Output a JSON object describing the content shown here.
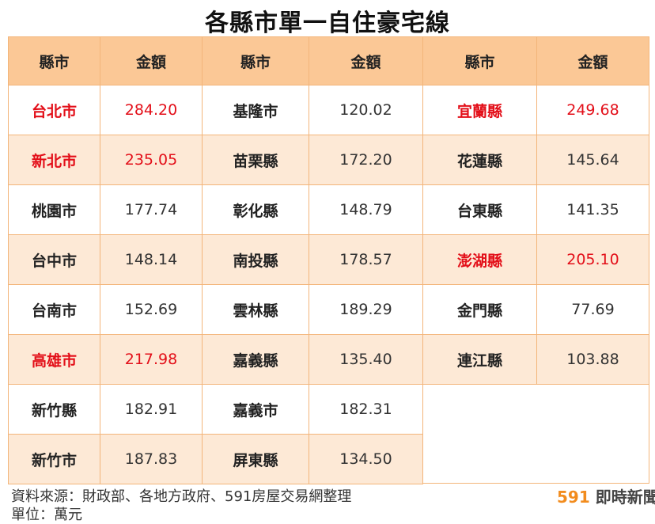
{
  "title": "各縣市單一自住豪宅線",
  "header": {
    "county": "縣市",
    "amount": "金額"
  },
  "colors": {
    "highlight": "#e30f19",
    "header_bg": "#fbc896",
    "alt_bg": "#fde9d6",
    "border": "#f3b57a",
    "brand": "#f28c1e"
  },
  "panels": [
    {
      "rows": [
        {
          "name": "台北市",
          "value": "284.20",
          "highlight": true
        },
        {
          "name": "新北市",
          "value": "235.05",
          "highlight": true
        },
        {
          "name": "桃園市",
          "value": "177.74",
          "highlight": false
        },
        {
          "name": "台中市",
          "value": "148.14",
          "highlight": false
        },
        {
          "name": "台南市",
          "value": "152.69",
          "highlight": false
        },
        {
          "name": "高雄市",
          "value": "217.98",
          "highlight": true
        },
        {
          "name": "新竹縣",
          "value": "182.91",
          "highlight": false
        },
        {
          "name": "新竹市",
          "value": "187.83",
          "highlight": false
        }
      ]
    },
    {
      "rows": [
        {
          "name": "基隆市",
          "value": "120.02",
          "highlight": false
        },
        {
          "name": "苗栗縣",
          "value": "172.20",
          "highlight": false
        },
        {
          "name": "彰化縣",
          "value": "148.79",
          "highlight": false
        },
        {
          "name": "南投縣",
          "value": "178.57",
          "highlight": false
        },
        {
          "name": "雲林縣",
          "value": "189.29",
          "highlight": false
        },
        {
          "name": "嘉義縣",
          "value": "135.40",
          "highlight": false
        },
        {
          "name": "嘉義市",
          "value": "182.31",
          "highlight": false
        },
        {
          "name": "屏東縣",
          "value": "134.50",
          "highlight": false
        }
      ]
    },
    {
      "rows": [
        {
          "name": "宜蘭縣",
          "value": "249.68",
          "highlight": true
        },
        {
          "name": "花蓮縣",
          "value": "145.64",
          "highlight": false
        },
        {
          "name": "台東縣",
          "value": "141.35",
          "highlight": false
        },
        {
          "name": "澎湖縣",
          "value": "205.10",
          "highlight": true
        },
        {
          "name": "金門縣",
          "value": "77.69",
          "highlight": false
        },
        {
          "name": "連江縣",
          "value": "103.88",
          "highlight": false
        }
      ]
    }
  ],
  "footer": {
    "source": "資料來源：財政部、各地方政府、591房屋交易網整理",
    "unit": "單位：萬元",
    "brand_num": "591",
    "brand_text": "即時新聞"
  }
}
